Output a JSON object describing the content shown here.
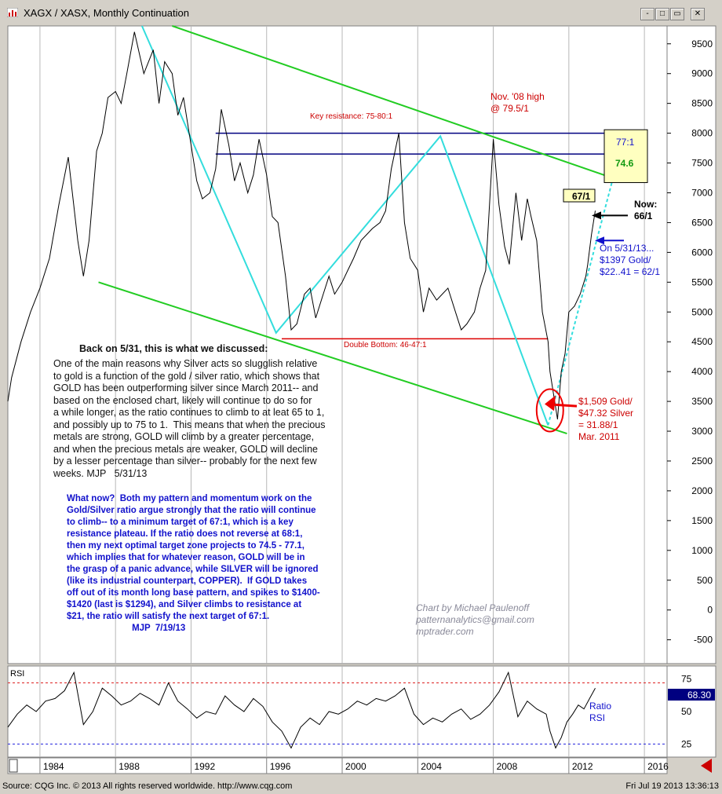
{
  "window": {
    "title": "XAGX / XASX, Monthly Continuation",
    "controls": [
      "-",
      "□",
      "▭",
      "✕"
    ]
  },
  "footer": {
    "source": "Source: CQG Inc. © 2013 All rights reserved worldwide. http://www.cqg.com",
    "timestamp": "Fri Jul 19 2013 13:36:13"
  },
  "chart_data": [
    {
      "type": "line",
      "title": "XAGX / XASX, Monthly Continuation",
      "ylim": [
        -900,
        9800
      ],
      "xlim": [
        1982.3,
        2017.2
      ],
      "y_ticks": [
        "9500",
        "9000",
        "8500",
        "8000",
        "7500",
        "7000",
        "6500",
        "6000",
        "5500",
        "5000",
        "4500",
        "4000",
        "3500",
        "3000",
        "2500",
        "2000",
        "1500",
        "1000",
        "500",
        "0",
        "-500"
      ],
      "y_tick_values": [
        9500,
        9000,
        8500,
        8000,
        7500,
        7000,
        6500,
        6000,
        5500,
        5000,
        4500,
        4000,
        3500,
        3000,
        2500,
        2000,
        1500,
        1000,
        500,
        0,
        -500
      ],
      "x_ticks": [
        "1984",
        "1988",
        "1992",
        "1996",
        "2000",
        "2004",
        "2008",
        "2012",
        "2016"
      ],
      "x_tick_values": [
        1984,
        1988,
        1992,
        1996,
        2000,
        2004,
        2008,
        2012,
        2016
      ],
      "series": [
        {
          "x": [
            1982.3,
            1982.5,
            1983.0,
            1983.5,
            1984.0,
            1984.5,
            1985.0,
            1985.5,
            1986.0,
            1986.3,
            1986.6,
            1987.0,
            1987.3,
            1987.6,
            1988.0,
            1988.3,
            1988.6,
            1989.0,
            1989.5,
            1990.0,
            1990.3,
            1990.6,
            1991.0,
            1991.3,
            1991.6,
            1992.0,
            1992.3,
            1992.6,
            1993.0,
            1993.3,
            1993.6,
            1994.0,
            1994.3,
            1994.6,
            1995.0,
            1995.3,
            1995.6,
            1996.0,
            1996.3,
            1996.6,
            1997.0,
            1997.3,
            1997.6,
            1998.0,
            1998.3,
            1998.6,
            1999.0,
            1999.3,
            1999.6,
            2000.0,
            2000.3,
            2000.6,
            2001.0,
            2001.3,
            2001.6,
            2002.0,
            2002.3,
            2002.6,
            2003.0,
            2003.3,
            2003.6,
            2004.0,
            2004.3,
            2004.6,
            2005.0,
            2005.3,
            2005.6,
            2006.0,
            2006.3,
            2006.6,
            2007.0,
            2007.3,
            2007.6,
            2008.0,
            2008.3,
            2008.6,
            2008.85,
            2009.2,
            2009.5,
            2009.8,
            2010.0,
            2010.3,
            2010.6,
            2010.9,
            2011.0,
            2011.2,
            2011.4,
            2011.6,
            2011.8,
            2012.0,
            2012.3,
            2012.6,
            2012.9,
            2013.0,
            2013.2,
            2013.4
          ],
          "values": [
            3500,
            3900,
            4500,
            5000,
            5400,
            5900,
            6800,
            7600,
            6200,
            5600,
            6200,
            7700,
            8000,
            8600,
            8700,
            8500,
            9000,
            9700,
            9000,
            9400,
            8500,
            9200,
            9000,
            8300,
            8600,
            7800,
            7200,
            6900,
            7000,
            7400,
            8400,
            7800,
            7200,
            7500,
            7000,
            7300,
            7900,
            7300,
            6600,
            6500,
            5600,
            4700,
            4800,
            5300,
            5400,
            4900,
            5300,
            5600,
            5300,
            5500,
            5700,
            5900,
            6200,
            6300,
            6400,
            6500,
            6700,
            7400,
            8000,
            6500,
            5900,
            5700,
            5000,
            5400,
            5200,
            5300,
            5400,
            5000,
            4700,
            4800,
            5000,
            5400,
            5700,
            7900,
            6800,
            6100,
            5800,
            7000,
            6200,
            6900,
            6600,
            6200,
            5000,
            4500,
            4000,
            3600,
            3200,
            4000,
            4300,
            5000,
            5100,
            5300,
            5600,
            5800,
            6300,
            6700
          ],
          "color": "#000000"
        }
      ],
      "annotations": {
        "key_resistance": "Key resistance: 75-80:1",
        "double_bottom": "Double Bottom: 46-47:1",
        "nov08_line1": "Nov. '08 high",
        "nov08_line2": "@ 79.5/1",
        "box_77": "77:1",
        "box_746": "74.6",
        "box_67": "67/1",
        "now_line1": "Now:",
        "now_line2": "66/1",
        "may_line1": "On 5/31/13...",
        "may_line2": "$1397 Gold/",
        "may_line3": "$22..41 = 62/1",
        "mar_line1": "$1,509 Gold/",
        "mar_line2": "$47.32 Silver",
        "mar_line3": "= 31.88/1",
        "mar_line4": "Mar. 2011",
        "credit_line1": "Chart by Michael Paulenoff",
        "credit_line2": "patternanalytics@gmail.com",
        "credit_line3": "mptrader.com",
        "black_heading": "Back on 5/31, this is what we discussed:",
        "black_text": "One of the main reasons why Silver acts so slugglish relative\nto gold is a function of the gold / silver ratio, which shows that\nGOLD has been outperforming silver since March 2011-- and\nbased on the enclosed chart, likely will continue to do so for\na while longer, as the ratio continues to climb to at leat 65 to 1,\nand possibly up to 75 to 1.  This means that when the precious\nmetals are strong, GOLD will climb by a greater percentage,\nand when the precious metals are weaker, GOLD will decline\nby a lesser percentage than silver-- probably for the next few\nweeks. MJP   5/31/13",
        "blue_text": "What now?  Both my pattern and momentum work on the\nGold/Silver ratio argue strongly that the ratio will continue\nto climb-- to a minimum target of 67:1, which is a key\nresistance plateau. If the ratio does not reverse at 68:1,\nthen my next optimal target zone projects to 74.5 - 77.1,\nwhich implies that for whatever reason, GOLD will be in\nthe grasp of a panic advance, while SILVER will be ignored\n(like its industrial counterpart, COPPER).  If GOLD takes\noff out of its month long base pattern, and spikes to $1400-\n$1420 (last is $1294), and Silver climbs to resistance at\n$21, the ratio will satisfy the next target of 67:1.\n                          MJP  7/19/13"
      },
      "resistance_lines": [
        8000,
        7650
      ],
      "support_line": 4550,
      "target_box": [
        7250,
        7900
      ],
      "now_value": 6620,
      "arrow_value": 6200
    },
    {
      "type": "line",
      "title": "RSI",
      "ylim": [
        15,
        85
      ],
      "y_ticks": [
        "75",
        "50",
        "25"
      ],
      "y_tick_values": [
        75,
        50,
        25
      ],
      "last_value_label": "68.30",
      "last_value": 68.3,
      "overbought": 72,
      "oversold": 25,
      "legend": [
        "Ratio",
        "RSI"
      ],
      "series": [
        {
          "x": [
            1982.3,
            1982.8,
            1983.3,
            1983.8,
            1984.3,
            1984.8,
            1985.3,
            1985.8,
            1986.3,
            1986.8,
            1987.3,
            1987.8,
            1988.3,
            1988.8,
            1989.3,
            1989.8,
            1990.3,
            1990.8,
            1991.3,
            1991.8,
            1992.3,
            1992.8,
            1993.3,
            1993.8,
            1994.3,
            1994.8,
            1995.3,
            1995.8,
            1996.3,
            1996.8,
            1997.3,
            1997.8,
            1998.3,
            1998.8,
            1999.3,
            1999.8,
            2000.3,
            2000.8,
            2001.3,
            2001.8,
            2002.3,
            2002.8,
            2003.3,
            2003.8,
            2004.3,
            2004.8,
            2005.3,
            2005.8,
            2006.3,
            2006.8,
            2007.3,
            2007.8,
            2008.3,
            2008.8,
            2009.3,
            2009.8,
            2010.3,
            2010.8,
            2011.0,
            2011.3,
            2011.6,
            2011.9,
            2012.2,
            2012.5,
            2012.8,
            2013.1,
            2013.4
          ],
          "values": [
            38,
            48,
            55,
            50,
            58,
            60,
            66,
            80,
            40,
            50,
            68,
            62,
            55,
            58,
            64,
            60,
            55,
            72,
            58,
            52,
            45,
            50,
            48,
            62,
            55,
            50,
            60,
            54,
            42,
            35,
            22,
            38,
            45,
            40,
            50,
            48,
            52,
            58,
            55,
            60,
            58,
            62,
            68,
            48,
            40,
            45,
            42,
            48,
            52,
            44,
            48,
            55,
            65,
            80,
            46,
            58,
            52,
            48,
            35,
            22,
            30,
            42,
            48,
            55,
            52,
            60,
            68
          ],
          "color": "#000000"
        }
      ]
    }
  ]
}
